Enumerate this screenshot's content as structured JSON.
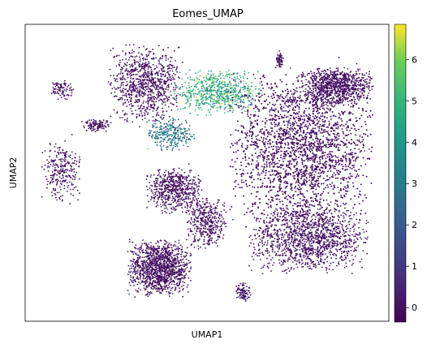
{
  "chart_data": {
    "type": "scatter",
    "title": "Eomes_UMAP",
    "xlabel": "UMAP1",
    "ylabel": "UMAP2",
    "x_ticks_shown": false,
    "y_ticks_shown": false,
    "grid": false,
    "colorbar": {
      "label": "",
      "colormap": "viridis",
      "range": [
        -0.35,
        6.85
      ],
      "ticks": [
        0,
        1,
        2,
        3,
        4,
        5,
        6
      ]
    },
    "colors": {
      "low": "#440154",
      "mid": "#21918c",
      "high": "#fde725"
    },
    "clusters": [
      {
        "name": "top-left-arm",
        "cx": 0.33,
        "cy": 0.8,
        "rx": 0.09,
        "ry": 0.12,
        "n": 900,
        "value_mean": 0.05
      },
      {
        "name": "green-ridge",
        "cx": 0.53,
        "cy": 0.77,
        "rx": 0.11,
        "ry": 0.07,
        "n": 650,
        "value_mean": 4.6
      },
      {
        "name": "mid-left-teal",
        "cx": 0.4,
        "cy": 0.63,
        "rx": 0.06,
        "ry": 0.05,
        "n": 300,
        "value_mean": 2.8
      },
      {
        "name": "right-dense",
        "cx": 0.76,
        "cy": 0.58,
        "rx": 0.18,
        "ry": 0.24,
        "n": 4200,
        "value_mean": 0.05
      },
      {
        "name": "right-top-lobe",
        "cx": 0.86,
        "cy": 0.79,
        "rx": 0.09,
        "ry": 0.06,
        "n": 900,
        "value_mean": 0.0
      },
      {
        "name": "right-bottom-lobe",
        "cx": 0.78,
        "cy": 0.28,
        "rx": 0.15,
        "ry": 0.11,
        "n": 1400,
        "value_mean": 0.0
      },
      {
        "name": "center-left-blob",
        "cx": 0.41,
        "cy": 0.44,
        "rx": 0.07,
        "ry": 0.07,
        "n": 600,
        "value_mean": 0.0
      },
      {
        "name": "bottom-left-blob",
        "cx": 0.37,
        "cy": 0.18,
        "rx": 0.08,
        "ry": 0.09,
        "n": 1300,
        "value_mean": 0.0
      },
      {
        "name": "lower-middle-strand",
        "cx": 0.5,
        "cy": 0.33,
        "rx": 0.05,
        "ry": 0.08,
        "n": 400,
        "value_mean": 0.1
      },
      {
        "name": "far-left-arc",
        "cx": 0.1,
        "cy": 0.5,
        "rx": 0.05,
        "ry": 0.1,
        "n": 260,
        "value_mean": 0.0
      },
      {
        "name": "left-small-1",
        "cx": 0.1,
        "cy": 0.78,
        "rx": 0.03,
        "ry": 0.03,
        "n": 90,
        "value_mean": 0.0
      },
      {
        "name": "left-small-2",
        "cx": 0.2,
        "cy": 0.66,
        "rx": 0.04,
        "ry": 0.02,
        "n": 110,
        "value_mean": 0.0
      },
      {
        "name": "small-bottom",
        "cx": 0.6,
        "cy": 0.1,
        "rx": 0.02,
        "ry": 0.03,
        "n": 90,
        "value_mean": 0.0
      },
      {
        "name": "top-right-spike",
        "cx": 0.7,
        "cy": 0.88,
        "rx": 0.01,
        "ry": 0.03,
        "n": 60,
        "value_mean": 0.0
      }
    ]
  }
}
